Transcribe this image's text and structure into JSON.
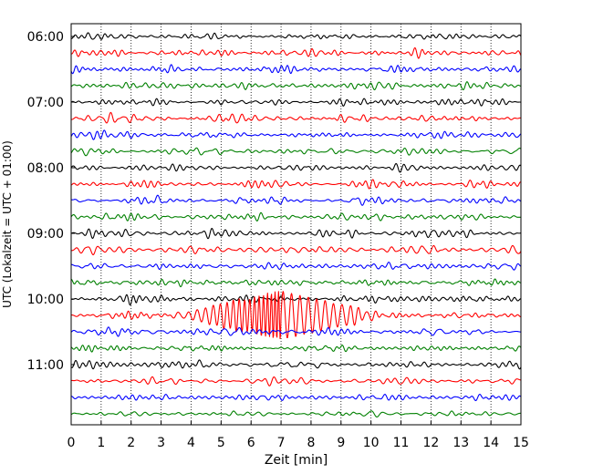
{
  "chart_data": {
    "type": "line",
    "xlabel": "Zeit  [min]",
    "ylabel": "UTC (Lokalzeit = UTC + 01:00)",
    "xlim": [
      0,
      15
    ],
    "x_ticks": [
      "0",
      "1",
      "2",
      "3",
      "4",
      "5",
      "6",
      "7",
      "8",
      "9",
      "10",
      "11",
      "12",
      "13",
      "14",
      "15"
    ],
    "y_tick_labels": [
      "06:00",
      "07:00",
      "08:00",
      "09:00",
      "10:00",
      "11:00"
    ],
    "rows_per_hour": 4,
    "row_count": 24,
    "vertical_grid": true,
    "grid_style": "dotted",
    "trace_colors": [
      "#000000",
      "#ff0000",
      "#0000ff",
      "#008000"
    ],
    "event": {
      "row_index": 17,
      "start_min": 3.0,
      "peak_min": 7.0,
      "end_min": 11.0,
      "max_relative_amplitude": 5.5
    }
  }
}
